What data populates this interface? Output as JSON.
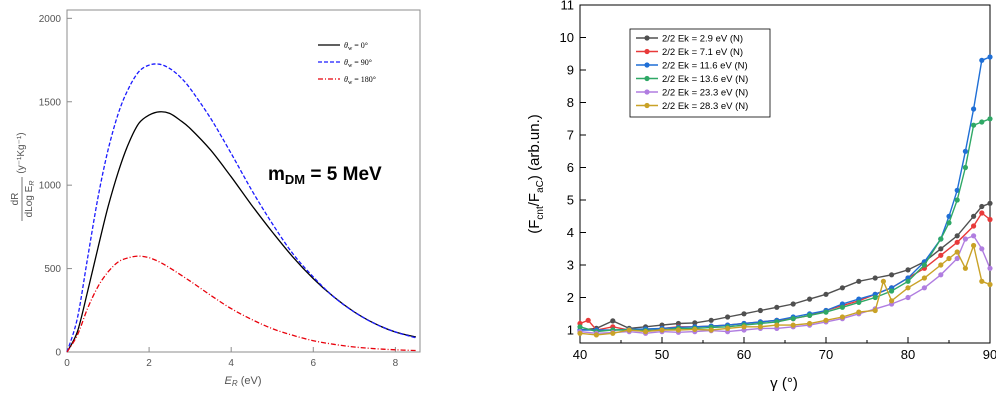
{
  "chart_data": [
    {
      "type": "line",
      "xlabel": "E_R (eV)",
      "xlabel_main": "E",
      "xlabel_sub": "R",
      "xlabel_unit": " (eV)",
      "ylabel_num": "dR",
      "ylabel_den": "dLog E",
      "ylabel_den_sub": "R",
      "ylabel_unit": "(y⁻¹Kg⁻¹)",
      "annotation": {
        "main": "m",
        "sub": "DM",
        "rest": " = 5 MeV"
      },
      "xlim": [
        0,
        8.6
      ],
      "ylim": [
        0,
        2050
      ],
      "xticks": [
        0,
        2,
        4,
        6,
        8
      ],
      "yticks": [
        0,
        500,
        1000,
        1500,
        2000
      ],
      "legend_position": "top-right",
      "series": [
        {
          "name": "θ_w = 0°",
          "name_theta": "θ",
          "name_sub": "w",
          "name_rest": " = 0°",
          "color": "#000000",
          "dash": "solid",
          "x": [
            0,
            0.25,
            0.5,
            0.75,
            1.0,
            1.25,
            1.5,
            1.75,
            2.0,
            2.25,
            2.5,
            2.75,
            3.0,
            3.5,
            4.0,
            4.5,
            5.0,
            5.5,
            6.0,
            6.5,
            7.0,
            7.5,
            8.0,
            8.5
          ],
          "y": [
            0,
            120,
            360,
            620,
            870,
            1080,
            1250,
            1370,
            1420,
            1440,
            1430,
            1390,
            1340,
            1210,
            1050,
            880,
            720,
            570,
            440,
            330,
            240,
            170,
            120,
            90
          ]
        },
        {
          "name": "θ_w = 90°",
          "name_theta": "θ",
          "name_sub": "w",
          "name_rest": " = 90°",
          "color": "#1a1aff",
          "dash": "dashed",
          "x": [
            0,
            0.25,
            0.5,
            0.75,
            1.0,
            1.25,
            1.5,
            1.75,
            2.0,
            2.25,
            2.5,
            2.75,
            3.0,
            3.5,
            4.0,
            4.5,
            5.0,
            5.5,
            6.0,
            6.5,
            7.0,
            7.5,
            8.0,
            8.5
          ],
          "y": [
            0,
            200,
            560,
            920,
            1210,
            1430,
            1580,
            1680,
            1720,
            1725,
            1700,
            1650,
            1580,
            1400,
            1190,
            970,
            770,
            590,
            450,
            330,
            240,
            170,
            120,
            85
          ]
        },
        {
          "name": "θ_w = 180°",
          "name_theta": "θ",
          "name_sub": "w",
          "name_rest": " = 180°",
          "color": "#e8000b",
          "dash": "dashdot",
          "x": [
            0,
            0.25,
            0.5,
            0.75,
            1.0,
            1.25,
            1.5,
            1.75,
            2.0,
            2.25,
            2.5,
            3.0,
            3.5,
            4.0,
            4.5,
            5.0,
            5.5,
            6.0,
            6.5,
            7.0,
            7.5,
            8.0,
            8.5
          ],
          "y": [
            0,
            100,
            260,
            390,
            480,
            540,
            565,
            575,
            565,
            540,
            505,
            425,
            340,
            260,
            195,
            140,
            100,
            68,
            46,
            30,
            20,
            13,
            9
          ]
        }
      ]
    },
    {
      "type": "line",
      "xlabel": "γ (°)",
      "ylabel_main": "(F",
      "ylabel_sub1": "cnt",
      "ylabel_mid": "/F",
      "ylabel_sub2": "aC",
      "ylabel_rest": ") (arb.un.)",
      "xlim": [
        40,
        90
      ],
      "ylim": [
        0.6,
        11
      ],
      "xticks": [
        40,
        50,
        60,
        70,
        80,
        90
      ],
      "yticks": [
        1,
        2,
        3,
        4,
        5,
        6,
        7,
        8,
        9,
        10,
        11
      ],
      "legend_position": "top-left",
      "series": [
        {
          "name": "2/2 Ek = 2.9 eV (N)",
          "color": "#505050",
          "x": [
            40,
            42,
            44,
            46,
            48,
            50,
            52,
            54,
            56,
            58,
            60,
            62,
            64,
            66,
            68,
            70,
            72,
            74,
            76,
            78,
            80,
            82,
            84,
            86,
            88,
            89,
            90
          ],
          "y": [
            1.0,
            1.05,
            1.28,
            1.05,
            1.1,
            1.15,
            1.2,
            1.22,
            1.3,
            1.4,
            1.5,
            1.6,
            1.7,
            1.8,
            1.95,
            2.1,
            2.3,
            2.5,
            2.6,
            2.7,
            2.85,
            3.1,
            3.5,
            3.9,
            4.5,
            4.8,
            4.9
          ]
        },
        {
          "name": "2/2 Ek = 7.1 eV (N)",
          "color": "#e83a3a",
          "x": [
            40,
            41,
            42,
            44,
            46,
            48,
            50,
            52,
            54,
            56,
            58,
            60,
            62,
            64,
            66,
            68,
            70,
            72,
            74,
            76,
            78,
            80,
            82,
            84,
            86,
            88,
            89,
            90
          ],
          "y": [
            1.2,
            1.3,
            1.0,
            1.1,
            1.0,
            1.02,
            1.05,
            1.1,
            1.1,
            1.12,
            1.15,
            1.2,
            1.25,
            1.3,
            1.35,
            1.45,
            1.6,
            1.75,
            1.9,
            2.1,
            2.3,
            2.6,
            2.9,
            3.3,
            3.7,
            4.2,
            4.6,
            4.4
          ]
        },
        {
          "name": "2/2 Ek = 11.6 eV (N)",
          "color": "#1f6fd6",
          "x": [
            40,
            42,
            44,
            46,
            48,
            50,
            52,
            54,
            56,
            58,
            60,
            62,
            64,
            66,
            68,
            70,
            72,
            74,
            76,
            78,
            80,
            82,
            84,
            85,
            86,
            87,
            88,
            89,
            90
          ],
          "y": [
            1.0,
            1.0,
            1.0,
            1.02,
            1.03,
            1.05,
            1.08,
            1.1,
            1.12,
            1.15,
            1.2,
            1.25,
            1.3,
            1.4,
            1.5,
            1.6,
            1.8,
            1.95,
            2.1,
            2.3,
            2.6,
            3.1,
            3.8,
            4.5,
            5.3,
            6.5,
            7.8,
            9.3,
            9.4
          ]
        },
        {
          "name": "2/2 Ek = 13.6 eV (N)",
          "color": "#2fa866",
          "x": [
            40,
            42,
            44,
            46,
            48,
            50,
            52,
            54,
            56,
            58,
            60,
            62,
            64,
            66,
            68,
            70,
            72,
            74,
            76,
            78,
            80,
            82,
            84,
            85,
            86,
            87,
            88,
            89,
            90
          ],
          "y": [
            1.1,
            0.95,
            1.0,
            1.0,
            0.98,
            1.0,
            1.05,
            1.05,
            1.08,
            1.1,
            1.15,
            1.2,
            1.25,
            1.35,
            1.45,
            1.55,
            1.7,
            1.85,
            2.0,
            2.2,
            2.5,
            3.0,
            3.8,
            4.3,
            5.0,
            6.0,
            7.3,
            7.4,
            7.5
          ]
        },
        {
          "name": "2/2 Ek = 23.3 eV (N)",
          "color": "#b07de0",
          "x": [
            40,
            42,
            44,
            46,
            48,
            50,
            52,
            54,
            56,
            58,
            60,
            62,
            64,
            66,
            68,
            70,
            72,
            74,
            76,
            78,
            80,
            82,
            84,
            86,
            87,
            88,
            89,
            90
          ],
          "y": [
            0.95,
            0.9,
            0.92,
            0.95,
            0.9,
            0.95,
            0.93,
            0.95,
            0.98,
            0.95,
            1.0,
            1.05,
            1.05,
            1.1,
            1.15,
            1.25,
            1.35,
            1.5,
            1.65,
            1.8,
            2.0,
            2.3,
            2.7,
            3.2,
            3.8,
            3.9,
            3.5,
            2.9
          ]
        },
        {
          "name": "2/2 Ek = 28.3 eV (N)",
          "color": "#c9a227",
          "x": [
            40,
            42,
            44,
            46,
            48,
            50,
            52,
            54,
            56,
            58,
            60,
            62,
            64,
            66,
            68,
            70,
            72,
            74,
            76,
            77,
            78,
            80,
            82,
            84,
            85,
            86,
            87,
            88,
            89,
            90
          ],
          "y": [
            0.9,
            0.85,
            0.9,
            1.0,
            0.95,
            1.0,
            1.0,
            1.02,
            1.0,
            1.05,
            1.1,
            1.1,
            1.15,
            1.15,
            1.2,
            1.3,
            1.4,
            1.55,
            1.6,
            2.5,
            1.9,
            2.3,
            2.6,
            3.0,
            3.2,
            3.4,
            2.9,
            3.6,
            2.5,
            2.4
          ]
        }
      ]
    }
  ]
}
